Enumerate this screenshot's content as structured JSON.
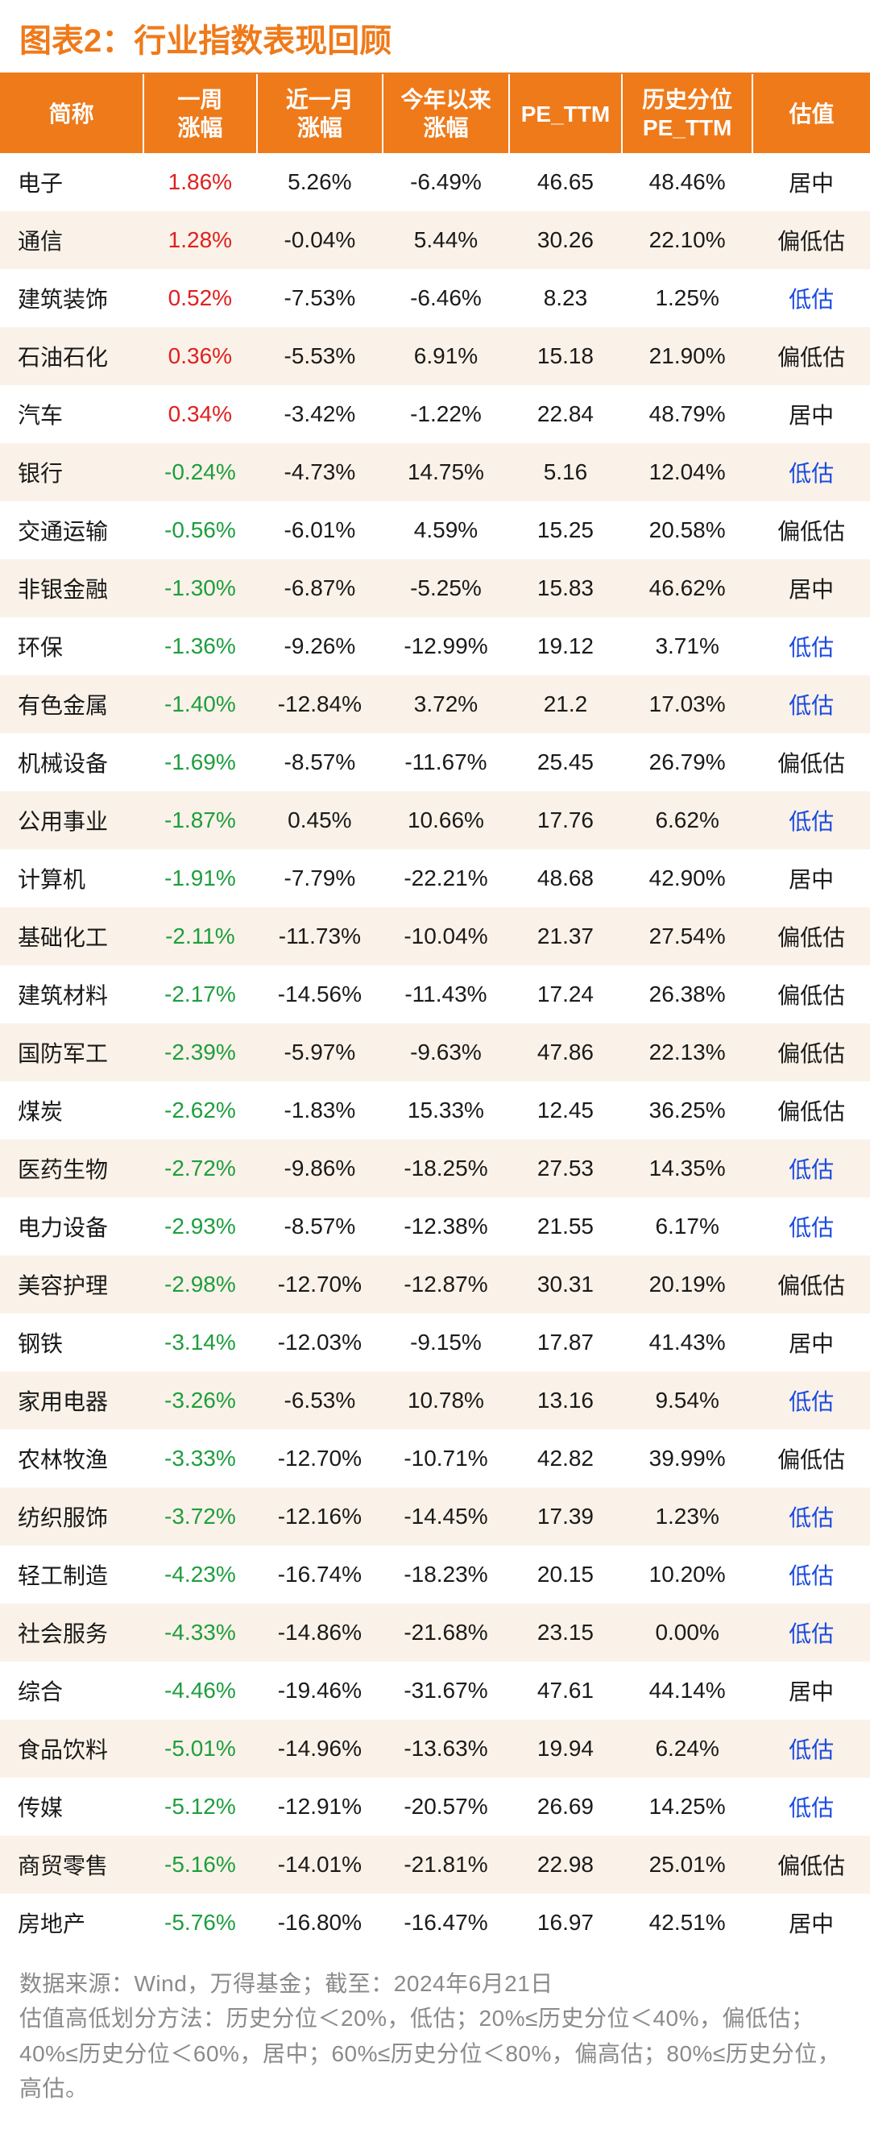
{
  "title": "图表2：行业指数表现回顾",
  "headers": {
    "name": "简称",
    "week": "一周\n涨幅",
    "month": "近一月\n涨幅",
    "ytd": "今年以来\n涨幅",
    "pettm": "PE_TTM",
    "hist": "历史分位\nPE_TTM",
    "val": "估值"
  },
  "valuation_labels": {
    "low": "低估",
    "mlow": "偏低估",
    "mid": "居中"
  },
  "colors": {
    "header_bg": "#ef7a1a",
    "header_text": "#ffffff",
    "row_even_bg": "#faf2e8",
    "row_odd_bg": "#ffffff",
    "text": "#1a1a1a",
    "positive": "#e02020",
    "negative": "#1e9e3e",
    "low_valuation": "#1a4ae0",
    "title_color": "#ef7a1a",
    "footnote_color": "#8a8a8a"
  },
  "typography": {
    "title_fontsize": 40,
    "header_fontsize": 28,
    "cell_fontsize": 28,
    "footnote_fontsize": 28
  },
  "table": {
    "type": "table",
    "column_widths_pct": [
      16.5,
      13,
      14.5,
      14.5,
      13,
      15,
      13.5
    ],
    "rows": [
      {
        "name": "电子",
        "week": "1.86%",
        "week_sign": "pos",
        "month": "5.26%",
        "ytd": "-6.49%",
        "pettm": "46.65",
        "hist": "48.46%",
        "val": "mid"
      },
      {
        "name": "通信",
        "week": "1.28%",
        "week_sign": "pos",
        "month": "-0.04%",
        "ytd": "5.44%",
        "pettm": "30.26",
        "hist": "22.10%",
        "val": "mlow"
      },
      {
        "name": "建筑装饰",
        "week": "0.52%",
        "week_sign": "pos",
        "month": "-7.53%",
        "ytd": "-6.46%",
        "pettm": "8.23",
        "hist": "1.25%",
        "val": "low"
      },
      {
        "name": "石油石化",
        "week": "0.36%",
        "week_sign": "pos",
        "month": "-5.53%",
        "ytd": "6.91%",
        "pettm": "15.18",
        "hist": "21.90%",
        "val": "mlow"
      },
      {
        "name": "汽车",
        "week": "0.34%",
        "week_sign": "pos",
        "month": "-3.42%",
        "ytd": "-1.22%",
        "pettm": "22.84",
        "hist": "48.79%",
        "val": "mid"
      },
      {
        "name": "银行",
        "week": "-0.24%",
        "week_sign": "neg",
        "month": "-4.73%",
        "ytd": "14.75%",
        "pettm": "5.16",
        "hist": "12.04%",
        "val": "low"
      },
      {
        "name": "交通运输",
        "week": "-0.56%",
        "week_sign": "neg",
        "month": "-6.01%",
        "ytd": "4.59%",
        "pettm": "15.25",
        "hist": "20.58%",
        "val": "mlow"
      },
      {
        "name": "非银金融",
        "week": "-1.30%",
        "week_sign": "neg",
        "month": "-6.87%",
        "ytd": "-5.25%",
        "pettm": "15.83",
        "hist": "46.62%",
        "val": "mid"
      },
      {
        "name": "环保",
        "week": "-1.36%",
        "week_sign": "neg",
        "month": "-9.26%",
        "ytd": "-12.99%",
        "pettm": "19.12",
        "hist": "3.71%",
        "val": "low"
      },
      {
        "name": "有色金属",
        "week": "-1.40%",
        "week_sign": "neg",
        "month": "-12.84%",
        "ytd": "3.72%",
        "pettm": "21.2",
        "hist": "17.03%",
        "val": "low"
      },
      {
        "name": "机械设备",
        "week": "-1.69%",
        "week_sign": "neg",
        "month": "-8.57%",
        "ytd": "-11.67%",
        "pettm": "25.45",
        "hist": "26.79%",
        "val": "mlow"
      },
      {
        "name": "公用事业",
        "week": "-1.87%",
        "week_sign": "neg",
        "month": "0.45%",
        "ytd": "10.66%",
        "pettm": "17.76",
        "hist": "6.62%",
        "val": "low"
      },
      {
        "name": "计算机",
        "week": "-1.91%",
        "week_sign": "neg",
        "month": "-7.79%",
        "ytd": "-22.21%",
        "pettm": "48.68",
        "hist": "42.90%",
        "val": "mid"
      },
      {
        "name": "基础化工",
        "week": "-2.11%",
        "week_sign": "neg",
        "month": "-11.73%",
        "ytd": "-10.04%",
        "pettm": "21.37",
        "hist": "27.54%",
        "val": "mlow"
      },
      {
        "name": "建筑材料",
        "week": "-2.17%",
        "week_sign": "neg",
        "month": "-14.56%",
        "ytd": "-11.43%",
        "pettm": "17.24",
        "hist": "26.38%",
        "val": "mlow"
      },
      {
        "name": "国防军工",
        "week": "-2.39%",
        "week_sign": "neg",
        "month": "-5.97%",
        "ytd": "-9.63%",
        "pettm": "47.86",
        "hist": "22.13%",
        "val": "mlow"
      },
      {
        "name": "煤炭",
        "week": "-2.62%",
        "week_sign": "neg",
        "month": "-1.83%",
        "ytd": "15.33%",
        "pettm": "12.45",
        "hist": "36.25%",
        "val": "mlow"
      },
      {
        "name": "医药生物",
        "week": "-2.72%",
        "week_sign": "neg",
        "month": "-9.86%",
        "ytd": "-18.25%",
        "pettm": "27.53",
        "hist": "14.35%",
        "val": "low"
      },
      {
        "name": "电力设备",
        "week": "-2.93%",
        "week_sign": "neg",
        "month": "-8.57%",
        "ytd": "-12.38%",
        "pettm": "21.55",
        "hist": "6.17%",
        "val": "low"
      },
      {
        "name": "美容护理",
        "week": "-2.98%",
        "week_sign": "neg",
        "month": "-12.70%",
        "ytd": "-12.87%",
        "pettm": "30.31",
        "hist": "20.19%",
        "val": "mlow"
      },
      {
        "name": "钢铁",
        "week": "-3.14%",
        "week_sign": "neg",
        "month": "-12.03%",
        "ytd": "-9.15%",
        "pettm": "17.87",
        "hist": "41.43%",
        "val": "mid"
      },
      {
        "name": "家用电器",
        "week": "-3.26%",
        "week_sign": "neg",
        "month": "-6.53%",
        "ytd": "10.78%",
        "pettm": "13.16",
        "hist": "9.54%",
        "val": "low"
      },
      {
        "name": "农林牧渔",
        "week": "-3.33%",
        "week_sign": "neg",
        "month": "-12.70%",
        "ytd": "-10.71%",
        "pettm": "42.82",
        "hist": "39.99%",
        "val": "mlow"
      },
      {
        "name": "纺织服饰",
        "week": "-3.72%",
        "week_sign": "neg",
        "month": "-12.16%",
        "ytd": "-14.45%",
        "pettm": "17.39",
        "hist": "1.23%",
        "val": "low"
      },
      {
        "name": "轻工制造",
        "week": "-4.23%",
        "week_sign": "neg",
        "month": "-16.74%",
        "ytd": "-18.23%",
        "pettm": "20.15",
        "hist": "10.20%",
        "val": "low"
      },
      {
        "name": "社会服务",
        "week": "-4.33%",
        "week_sign": "neg",
        "month": "-14.86%",
        "ytd": "-21.68%",
        "pettm": "23.15",
        "hist": "0.00%",
        "val": "low"
      },
      {
        "name": "综合",
        "week": "-4.46%",
        "week_sign": "neg",
        "month": "-19.46%",
        "ytd": "-31.67%",
        "pettm": "47.61",
        "hist": "44.14%",
        "val": "mid"
      },
      {
        "name": "食品饮料",
        "week": "-5.01%",
        "week_sign": "neg",
        "month": "-14.96%",
        "ytd": "-13.63%",
        "pettm": "19.94",
        "hist": "6.24%",
        "val": "low"
      },
      {
        "name": "传媒",
        "week": "-5.12%",
        "week_sign": "neg",
        "month": "-12.91%",
        "ytd": "-20.57%",
        "pettm": "26.69",
        "hist": "14.25%",
        "val": "low"
      },
      {
        "name": "商贸零售",
        "week": "-5.16%",
        "week_sign": "neg",
        "month": "-14.01%",
        "ytd": "-21.81%",
        "pettm": "22.98",
        "hist": "25.01%",
        "val": "mlow"
      },
      {
        "name": "房地产",
        "week": "-5.76%",
        "week_sign": "neg",
        "month": "-16.80%",
        "ytd": "-16.47%",
        "pettm": "16.97",
        "hist": "42.51%",
        "val": "mid"
      }
    ]
  },
  "footnote": {
    "line1": "数据来源：Wind，万得基金；截至：2024年6月21日",
    "line2": "估值高低划分方法：历史分位＜20%，低估；20%≤历史分位＜40%，偏低估；40%≤历史分位＜60%，居中；60%≤历史分位＜80%，偏高估；80%≤历史分位，高估。"
  }
}
